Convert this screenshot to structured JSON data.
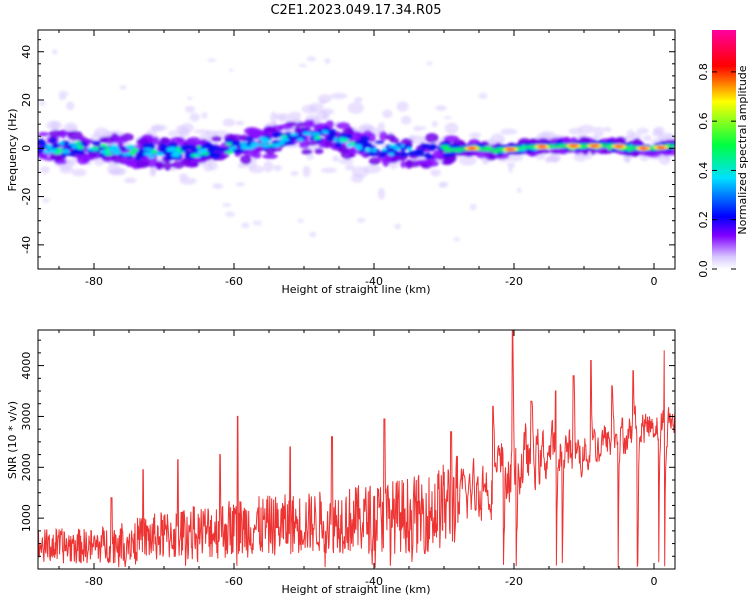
{
  "title": "C2E1.2023.049.17.34.R05",
  "chart_data": [
    {
      "type": "heatmap",
      "xlabel": "Height of straight line (km)",
      "ylabel": "Frequency (Hz)",
      "xlim": [
        -88,
        3
      ],
      "ylim": [
        -50,
        49
      ],
      "xticks": [
        -80,
        -60,
        -40,
        -20,
        0
      ],
      "yticks": [
        -40,
        -20,
        0,
        20,
        40
      ],
      "colorbar": {
        "label": "Normalized spectral amplitude",
        "range": [
          0.0,
          0.97
        ],
        "ticks": [
          "0.0",
          "0.2",
          "0.4",
          "0.6",
          "0.8"
        ],
        "colormap": [
          "#ffffff",
          "#d8c8ff",
          "#8000ff",
          "#0000ff",
          "#00e0ff",
          "#00ff40",
          "#ffff00",
          "#ff0000",
          "#ff00a0"
        ]
      },
      "ridge": [
        {
          "x": -88,
          "y": 0.5
        },
        {
          "x": -80,
          "y": 0
        },
        {
          "x": -72,
          "y": -2
        },
        {
          "x": -65,
          "y": -1
        },
        {
          "x": -58,
          "y": 1
        },
        {
          "x": -52,
          "y": 4
        },
        {
          "x": -46,
          "y": 5
        },
        {
          "x": -40,
          "y": 0
        },
        {
          "x": -34,
          "y": -1
        },
        {
          "x": -30,
          "y": -1
        },
        {
          "x": -26,
          "y": 0
        },
        {
          "x": -22,
          "y": -1
        },
        {
          "x": -18,
          "y": 0.5
        },
        {
          "x": -12,
          "y": 1
        },
        {
          "x": -6,
          "y": 1
        },
        {
          "x": -2,
          "y": 0
        },
        {
          "x": 0,
          "y": 0
        },
        {
          "x": 3,
          "y": 1
        }
      ]
    },
    {
      "type": "line",
      "xlabel": "Height of straight line (km)",
      "ylabel": "SNR (10 * v/v)",
      "xlim": [
        -88,
        3
      ],
      "ylim": [
        0,
        4700
      ],
      "xticks": [
        -80,
        -60,
        -40,
        -20,
        0
      ],
      "yticks": [
        1000,
        2000,
        3000,
        4000
      ],
      "color": "#ee3333",
      "envelope": [
        {
          "x": -88,
          "base": 450,
          "amp": 350
        },
        {
          "x": -80,
          "base": 450,
          "amp": 350
        },
        {
          "x": -70,
          "base": 650,
          "amp": 500
        },
        {
          "x": -60,
          "base": 800,
          "amp": 600
        },
        {
          "x": -50,
          "base": 900,
          "amp": 600
        },
        {
          "x": -40,
          "base": 1000,
          "amp": 700
        },
        {
          "x": -32,
          "base": 1100,
          "amp": 800
        },
        {
          "x": -25,
          "base": 1600,
          "amp": 1000
        },
        {
          "x": -20,
          "base": 2000,
          "amp": 1200
        },
        {
          "x": -15,
          "base": 2300,
          "amp": 900
        },
        {
          "x": -10,
          "base": 2300,
          "amp": 800
        },
        {
          "x": -5,
          "base": 2600,
          "amp": 700
        },
        {
          "x": 0,
          "base": 2900,
          "amp": 700
        },
        {
          "x": 3,
          "base": 2900,
          "amp": 600
        }
      ],
      "peaks": [
        {
          "x": -77.5,
          "y": 1400
        },
        {
          "x": -73,
          "y": 1950
        },
        {
          "x": -68,
          "y": 2150
        },
        {
          "x": -62,
          "y": 2250
        },
        {
          "x": -59.5,
          "y": 3000
        },
        {
          "x": -52,
          "y": 2400
        },
        {
          "x": -46,
          "y": 2600
        },
        {
          "x": -38.5,
          "y": 2950
        },
        {
          "x": -29,
          "y": 2700
        },
        {
          "x": -23,
          "y": 3200
        },
        {
          "x": -20.2,
          "y": 4700
        },
        {
          "x": -17.5,
          "y": 3300
        },
        {
          "x": -14,
          "y": 3500
        },
        {
          "x": -11.5,
          "y": 3800
        },
        {
          "x": -9,
          "y": 4100
        },
        {
          "x": -6,
          "y": 3600
        },
        {
          "x": -3,
          "y": 3900
        },
        {
          "x": 1.5,
          "y": 4300
        }
      ]
    }
  ]
}
